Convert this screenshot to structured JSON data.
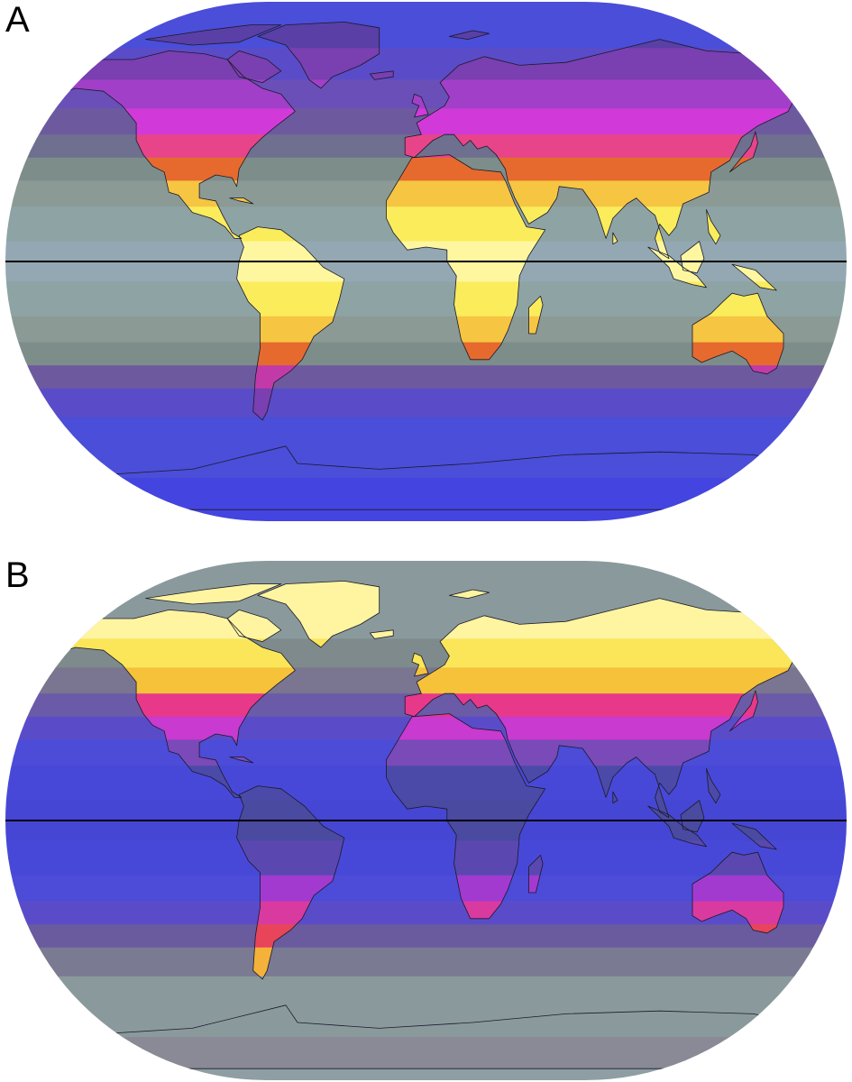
{
  "panels": [
    {
      "label": "A",
      "bands": [
        {
          "lat": 80,
          "ocean": "#4a4ed8",
          "land": "#5a3fa6"
        },
        {
          "lat": 68,
          "ocean": "#5a4cc8",
          "land": "#7a3fb0"
        },
        {
          "lat": 58,
          "ocean": "#6a4fb8",
          "land": "#a23fc8"
        },
        {
          "lat": 48,
          "ocean": "#6d5a9e",
          "land": "#d13ad8"
        },
        {
          "lat": 40,
          "ocean": "#6f6f8f",
          "land": "#e8448a"
        },
        {
          "lat": 32,
          "ocean": "#7d8d8a",
          "land": "#e66a2e"
        },
        {
          "lat": 24,
          "ocean": "#8b9a95",
          "land": "#f6c542"
        },
        {
          "lat": 14,
          "ocean": "#8ea3a3",
          "land": "#fbec5c"
        },
        {
          "lat": 0,
          "ocean": "#93a8b2",
          "land": "#fff7a0"
        },
        {
          "lat": -14,
          "ocean": "#8ea3a3",
          "land": "#fbec5c"
        },
        {
          "lat": -24,
          "ocean": "#8b9a95",
          "land": "#f6c542"
        },
        {
          "lat": -32,
          "ocean": "#7d8d8a",
          "land": "#e66a2e"
        },
        {
          "lat": -40,
          "ocean": "#6d5a9e",
          "land": "#c23aa8"
        },
        {
          "lat": -48,
          "ocean": "#5a4cc8",
          "land": "#7a3fb0"
        },
        {
          "lat": -60,
          "ocean": "#4a4ed8",
          "land": "#4a4ed8"
        },
        {
          "lat": -90,
          "ocean": "#4444e0",
          "land": "#4444e0"
        }
      ]
    },
    {
      "label": "B",
      "bands": [
        {
          "lat": 80,
          "ocean": "#8a9a9c",
          "land": "#fff4a0"
        },
        {
          "lat": 68,
          "ocean": "#8a9a9c",
          "land": "#fff4a0"
        },
        {
          "lat": 58,
          "ocean": "#7e8a8c",
          "land": "#fbe65a"
        },
        {
          "lat": 48,
          "ocean": "#7a7590",
          "land": "#f5c23a"
        },
        {
          "lat": 40,
          "ocean": "#6a5aa8",
          "land": "#e8388a"
        },
        {
          "lat": 32,
          "ocean": "#5a4cc8",
          "land": "#c83ad0"
        },
        {
          "lat": 24,
          "ocean": "#4c4cd8",
          "land": "#7a4ab8"
        },
        {
          "lat": 14,
          "ocean": "#4848d8",
          "land": "#4c4aa8"
        },
        {
          "lat": 0,
          "ocean": "#4646d4",
          "land": "#4a4aa0"
        },
        {
          "lat": -14,
          "ocean": "#4848d8",
          "land": "#5a48b0"
        },
        {
          "lat": -24,
          "ocean": "#4c4cd8",
          "land": "#a23ad0"
        },
        {
          "lat": -32,
          "ocean": "#5a4cc8",
          "land": "#d83aa0"
        },
        {
          "lat": -40,
          "ocean": "#6a5a9e",
          "land": "#e8445a"
        },
        {
          "lat": -48,
          "ocean": "#7a7a92",
          "land": "#f5b23a"
        },
        {
          "lat": -60,
          "ocean": "#8a9a9c",
          "land": "#8a9a9c"
        },
        {
          "lat": -90,
          "ocean": "#8e9ea2",
          "land": "#8a8a96"
        }
      ]
    }
  ]
}
